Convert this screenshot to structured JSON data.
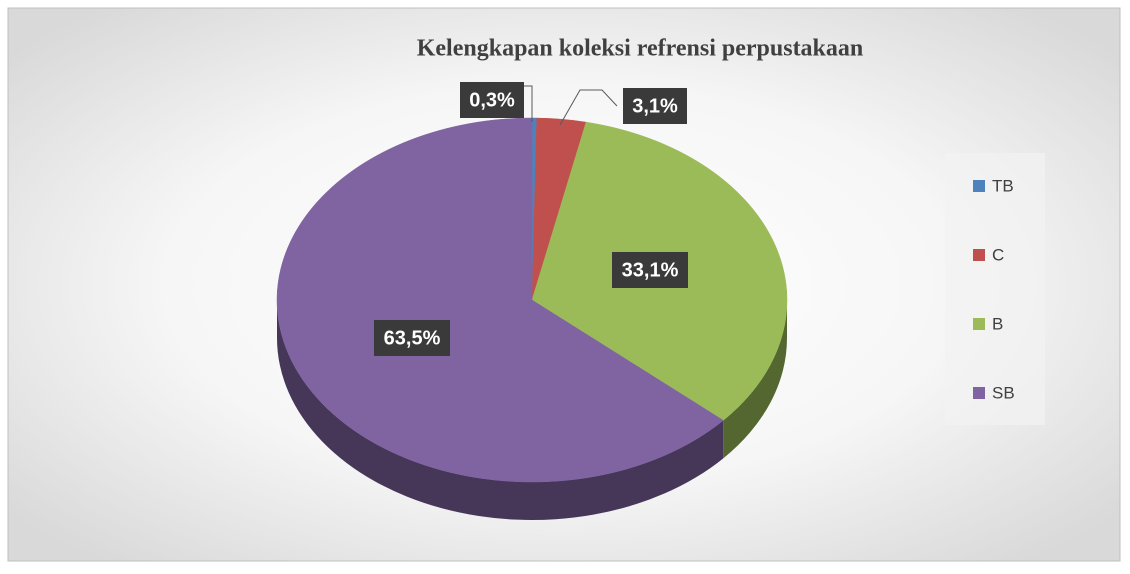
{
  "chart_data": {
    "type": "pie",
    "title": "Kelengkapan koleksi refrensi perpustakaan",
    "categories": [
      "TB",
      "C",
      "B",
      "SB"
    ],
    "values": [
      0.3,
      3.1,
      33.1,
      63.5
    ],
    "value_labels": [
      "0,3%",
      "3,1%",
      "33,1%",
      "63,5%"
    ],
    "colors": [
      "#4f81bd",
      "#c0504d",
      "#9bbb59",
      "#8064a2"
    ],
    "legend": "right"
  }
}
